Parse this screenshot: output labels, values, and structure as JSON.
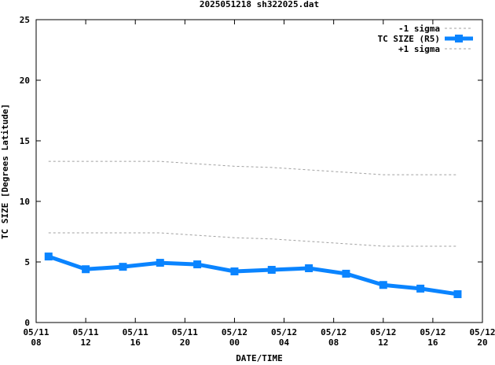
{
  "chart_data": {
    "type": "line",
    "title": "2025051218 sh322025.dat",
    "xlabel": "DATE/TIME",
    "ylabel": "TC SIZE [Degrees Latitude]",
    "ylim": [
      0,
      25
    ],
    "yticks": [
      0,
      5,
      10,
      15,
      20,
      25
    ],
    "xlim_hours": [
      0,
      36
    ],
    "xticks": [
      {
        "hour": 0,
        "l1": "05/11",
        "l2": "08"
      },
      {
        "hour": 4,
        "l1": "05/11",
        "l2": "12"
      },
      {
        "hour": 8,
        "l1": "05/11",
        "l2": "16"
      },
      {
        "hour": 12,
        "l1": "05/11",
        "l2": "20"
      },
      {
        "hour": 16,
        "l1": "05/12",
        "l2": "00"
      },
      {
        "hour": 20,
        "l1": "05/12",
        "l2": "04"
      },
      {
        "hour": 24,
        "l1": "05/12",
        "l2": "08"
      },
      {
        "hour": 28,
        "l1": "05/12",
        "l2": "12"
      },
      {
        "hour": 32,
        "l1": "05/12",
        "l2": "16"
      },
      {
        "hour": 36,
        "l1": "05/12",
        "l2": "20"
      }
    ],
    "x_hours": [
      1,
      4,
      7,
      10,
      13,
      16,
      19,
      22,
      25,
      28,
      31,
      34
    ],
    "legend_position": "top-right",
    "series": [
      {
        "name": "-1 sigma",
        "color": "#a0a0a0",
        "style": "dotted",
        "values": [
          7.4,
          7.4,
          7.4,
          7.4,
          7.2,
          7.0,
          6.9,
          6.7,
          6.5,
          6.3,
          6.3,
          6.3
        ]
      },
      {
        "name": "TC SIZE (R5)",
        "color": "#0a84ff",
        "style": "thick-marker",
        "values": [
          5.45,
          4.4,
          4.6,
          4.93,
          4.8,
          4.22,
          4.35,
          4.48,
          4.03,
          3.1,
          2.8,
          2.34
        ]
      },
      {
        "name": "+1 sigma",
        "color": "#a0a0a0",
        "style": "dotted",
        "values": [
          13.3,
          13.3,
          13.3,
          13.3,
          13.1,
          12.9,
          12.8,
          12.6,
          12.4,
          12.2,
          12.2,
          12.2
        ]
      }
    ]
  }
}
